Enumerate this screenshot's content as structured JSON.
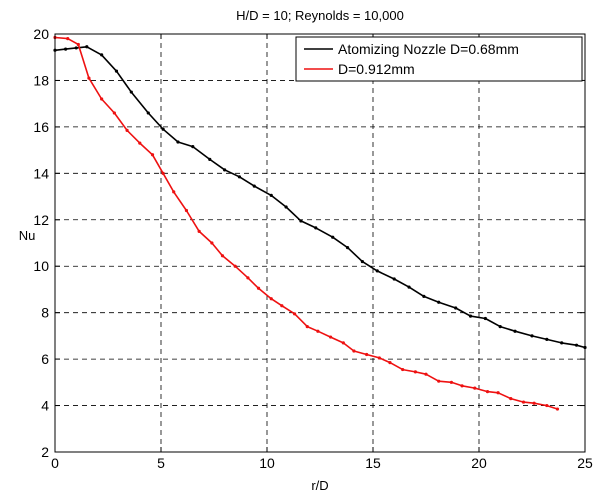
{
  "chart_data": {
    "type": "line",
    "title": "H/D = 10; Reynolds = 10,000",
    "xlabel": "r/D",
    "ylabel": "Nu",
    "xlim": [
      0,
      25
    ],
    "ylim": [
      2,
      20
    ],
    "xticks": [
      0,
      5,
      10,
      15,
      20,
      25
    ],
    "yticks": [
      2,
      4,
      6,
      8,
      10,
      12,
      14,
      16,
      18,
      20
    ],
    "grid": true,
    "legend_position": "top-right",
    "series": [
      {
        "name": "Atomizing Nozzle D=0.68mm",
        "color": "#000000",
        "x": [
          0,
          0.5,
          1.0,
          1.5,
          2.2,
          2.9,
          3.6,
          4.4,
          5.1,
          5.8,
          6.5,
          7.3,
          8.0,
          8.7,
          9.4,
          10.2,
          10.9,
          11.6,
          12.3,
          13.1,
          13.8,
          14.5,
          15.2,
          16.0,
          16.7,
          17.4,
          18.1,
          18.9,
          19.6,
          20.3,
          21.0,
          21.7,
          22.5,
          23.2,
          23.9,
          24.6,
          25.0
        ],
        "y": [
          19.3,
          19.35,
          19.4,
          19.45,
          19.1,
          18.4,
          17.5,
          16.6,
          15.9,
          15.35,
          15.15,
          14.6,
          14.15,
          13.85,
          13.45,
          13.05,
          12.55,
          11.95,
          11.65,
          11.25,
          10.8,
          10.2,
          9.8,
          9.45,
          9.1,
          8.7,
          8.45,
          8.2,
          7.85,
          7.75,
          7.4,
          7.2,
          7.0,
          6.85,
          6.7,
          6.6,
          6.5
        ]
      },
      {
        "name": "D=0.912mm",
        "color": "#ee1111",
        "x": [
          0,
          0.6,
          1.1,
          1.6,
          2.2,
          2.8,
          3.4,
          4.0,
          4.6,
          5.1,
          5.6,
          6.2,
          6.8,
          7.4,
          7.9,
          8.5,
          9.1,
          9.6,
          10.2,
          10.7,
          11.3,
          11.9,
          12.4,
          13.0,
          13.6,
          14.1,
          14.7,
          15.3,
          15.8,
          16.4,
          17.0,
          17.5,
          18.1,
          18.7,
          19.2,
          19.8,
          20.4,
          20.9,
          21.5,
          22.1,
          22.6,
          23.2,
          23.7
        ],
        "y": [
          19.85,
          19.8,
          19.55,
          18.1,
          17.2,
          16.6,
          15.85,
          15.3,
          14.8,
          14.0,
          13.2,
          12.4,
          11.5,
          11.0,
          10.45,
          10.0,
          9.5,
          9.05,
          8.6,
          8.3,
          7.95,
          7.4,
          7.2,
          6.95,
          6.7,
          6.35,
          6.2,
          6.05,
          5.85,
          5.55,
          5.45,
          5.35,
          5.05,
          5.0,
          4.85,
          4.75,
          4.6,
          4.55,
          4.3,
          4.15,
          4.1,
          4.0,
          3.85
        ]
      }
    ]
  }
}
